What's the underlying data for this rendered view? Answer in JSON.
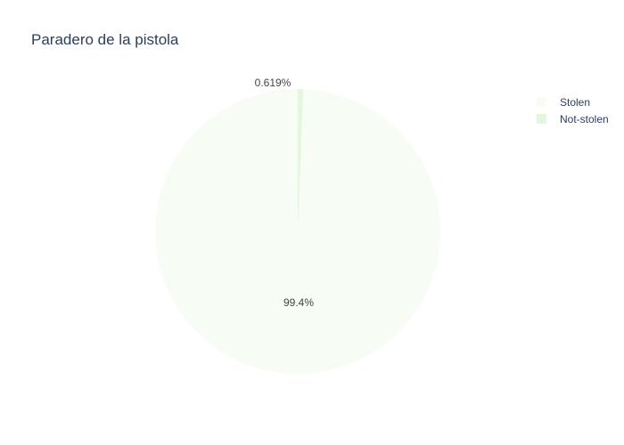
{
  "chart_data": {
    "type": "pie",
    "title": "Paradero de la pistola",
    "slices": [
      {
        "label": "Stolen",
        "value": 99.381,
        "display": "99.4%",
        "color": "#f7fcf5"
      },
      {
        "label": "Not-stolen",
        "value": 0.619,
        "display": "0.619%",
        "color": "#e5f5e0"
      }
    ],
    "legend": {
      "position": "top-right",
      "entries": [
        "Stolen",
        "Not-stolen"
      ]
    },
    "text_color": "#2a3f5f",
    "label_color": "#444444"
  }
}
